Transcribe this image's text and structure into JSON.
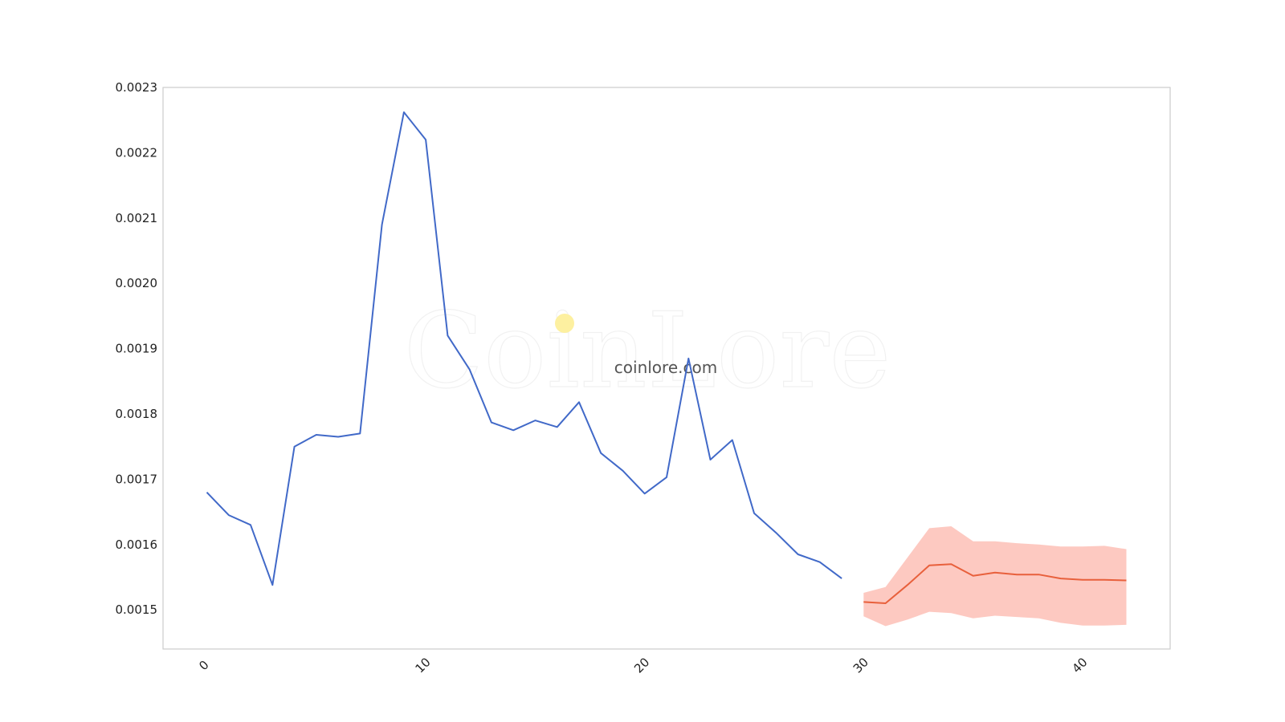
{
  "watermark": {
    "logo_text": "CoinLore",
    "site_text": "coinlore.com",
    "logo_dot_color": "#fdf0a0"
  },
  "chart_data": {
    "type": "line",
    "title": "",
    "xlabel": "",
    "ylabel": "",
    "xlim": [
      -2,
      44
    ],
    "ylim": [
      0.00144,
      0.0023
    ],
    "x_ticks": [
      0,
      10,
      20,
      30,
      40
    ],
    "y_ticks": [
      0.0015,
      0.0016,
      0.0017,
      0.0018,
      0.0019,
      0.002,
      0.0021,
      0.0022,
      0.0023
    ],
    "y_tick_labels": [
      "0.0015",
      "0.0016",
      "0.0017",
      "0.0018",
      "0.0019",
      "0.0020",
      "0.0021",
      "0.0022",
      "0.0023"
    ],
    "grid": false,
    "legend": "none",
    "series": [
      {
        "color": "#4169c8",
        "x": [
          0,
          1,
          2,
          3,
          4,
          5,
          6,
          7,
          8,
          9,
          10,
          11,
          12,
          13,
          14,
          15,
          16,
          17,
          18,
          19,
          20,
          21,
          22,
          23,
          24,
          25,
          26,
          27,
          28,
          29
        ],
        "values": [
          0.00168,
          0.001645,
          0.00163,
          0.001538,
          0.00175,
          0.001768,
          0.001765,
          0.00177,
          0.00209,
          0.002262,
          0.00222,
          0.00192,
          0.001868,
          0.001787,
          0.001775,
          0.00179,
          0.00178,
          0.001818,
          0.00174,
          0.001713,
          0.001678,
          0.001703,
          0.001885,
          0.00173,
          0.00176,
          0.001648,
          0.001618,
          0.001585,
          0.001573,
          0.001548
        ]
      },
      {
        "color": "#e8603c",
        "band_color": "#fdbcb1",
        "x": [
          30,
          31,
          32,
          33,
          34,
          35,
          36,
          37,
          38,
          39,
          40,
          41,
          42
        ],
        "values": [
          0.001512,
          0.00151,
          0.001538,
          0.001568,
          0.00157,
          0.001552,
          0.001557,
          0.001554,
          0.001554,
          0.001548,
          0.001546,
          0.001546,
          0.001545
        ],
        "lower": [
          0.00149,
          0.001475,
          0.001485,
          0.001497,
          0.001495,
          0.001487,
          0.001491,
          0.001489,
          0.001487,
          0.00148,
          0.001476,
          0.001476,
          0.001477
        ],
        "upper": [
          0.001526,
          0.001535,
          0.00158,
          0.001625,
          0.001628,
          0.001605,
          0.001605,
          0.001602,
          0.0016,
          0.001597,
          0.001597,
          0.001598,
          0.001593
        ]
      }
    ]
  }
}
